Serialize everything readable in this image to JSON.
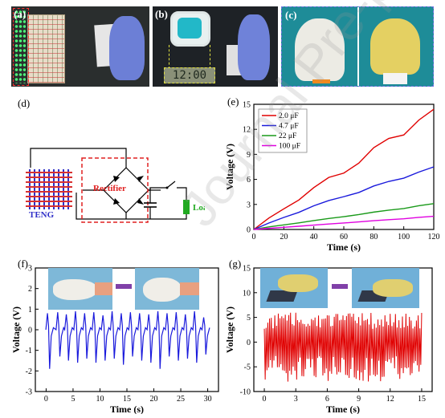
{
  "panels": {
    "a": {
      "label": "(a)"
    },
    "b": {
      "label": "(b)",
      "watch_display": "12:00"
    },
    "c": {
      "label": "(c)"
    },
    "d": {
      "label": "(d)",
      "teng": "TENG",
      "rectifier": "Rectifier",
      "load": "Load"
    },
    "e": {
      "label": "(e)"
    },
    "f": {
      "label": "(f)"
    },
    "g": {
      "label": "(g)"
    }
  },
  "watermark": "Journal Pre-proof",
  "colors": {
    "red": "#e00000",
    "blue": "#1a1adc",
    "green": "#1a9a1a",
    "magenta": "#e000e0",
    "teng_grid_red": "#d83030",
    "teng_grid_blue": "#3030c8",
    "load_green": "#22aa22"
  },
  "chart_data": [
    {
      "id": "e",
      "type": "line",
      "xlabel": "Time (s)",
      "ylabel": "Voltage (V)",
      "xlim": [
        0,
        120
      ],
      "ylim": [
        0,
        15
      ],
      "xticks": [
        0,
        20,
        40,
        60,
        80,
        100,
        120
      ],
      "yticks": [
        0,
        3,
        6,
        9,
        12,
        15
      ],
      "legend_position": "top-left",
      "series": [
        {
          "name": "2.0 μF",
          "color": "#e00000",
          "x": [
            0,
            10,
            20,
            30,
            40,
            50,
            60,
            70,
            80,
            90,
            100,
            110,
            120
          ],
          "y": [
            0,
            1.3,
            2.5,
            3.7,
            4.9,
            6.0,
            7.0,
            8.2,
            9.4,
            10.7,
            11.9,
            13.2,
            14.4
          ]
        },
        {
          "name": "4.7 μF",
          "color": "#1a1adc",
          "x": [
            0,
            10,
            20,
            30,
            40,
            50,
            60,
            70,
            80,
            90,
            100,
            110,
            120
          ],
          "y": [
            0,
            0.75,
            1.45,
            2.1,
            2.8,
            3.4,
            4.0,
            4.5,
            5.1,
            5.7,
            6.3,
            6.9,
            7.5
          ]
        },
        {
          "name": "22 μF",
          "color": "#1a9a1a",
          "x": [
            0,
            10,
            20,
            30,
            40,
            50,
            60,
            70,
            80,
            90,
            100,
            110,
            120
          ],
          "y": [
            0,
            0.3,
            0.55,
            0.8,
            1.05,
            1.3,
            1.55,
            1.8,
            2.05,
            2.3,
            2.55,
            2.85,
            3.1
          ]
        },
        {
          "name": "100 μF",
          "color": "#e000e0",
          "x": [
            0,
            10,
            20,
            30,
            40,
            50,
            60,
            70,
            80,
            90,
            100,
            110,
            120
          ],
          "y": [
            0,
            0.13,
            0.26,
            0.39,
            0.52,
            0.65,
            0.78,
            0.91,
            1.04,
            1.17,
            1.3,
            1.45,
            1.58
          ]
        }
      ]
    },
    {
      "id": "f",
      "type": "line",
      "xlabel": "Time (s)",
      "ylabel": "Voltage (V)",
      "xlim": [
        -2,
        32
      ],
      "ylim": [
        -3,
        3
      ],
      "xticks": [
        0,
        5,
        10,
        15,
        20,
        25,
        30
      ],
      "yticks": [
        -3,
        -2,
        -1,
        0,
        1,
        2,
        3
      ],
      "series": [
        {
          "name": "",
          "color": "#1a1adc",
          "peak_times": [
            0.4,
            2.3,
            3.9,
            5.6,
            7.3,
            9.0,
            10.7,
            12.4,
            14.1,
            15.8,
            17.5,
            19.2,
            20.9,
            22.6,
            24.3,
            26.0,
            27.7,
            29.4
          ],
          "peak_max": [
            0.8,
            0.85,
            0.75,
            0.9,
            0.8,
            0.85,
            0.7,
            0.9,
            0.8,
            0.85,
            0.8,
            0.75,
            0.9,
            0.8,
            0.85,
            0.75,
            0.9,
            0.6
          ],
          "peak_min": [
            -1.9,
            -1.3,
            -1.5,
            -1.6,
            -1.4,
            -1.6,
            -1.5,
            -1.4,
            -1.7,
            -1.3,
            -1.5,
            -1.6,
            -1.9,
            -1.3,
            -1.5,
            -1.4,
            -1.6,
            -1.2
          ]
        }
      ]
    },
    {
      "id": "g",
      "type": "line",
      "xlabel": "Time (s)",
      "ylabel": "Voltage (V)",
      "xlim": [
        -1,
        16
      ],
      "ylim": [
        -10,
        15
      ],
      "xticks": [
        0,
        3,
        6,
        9,
        12,
        15
      ],
      "yticks": [
        -10,
        -5,
        0,
        5,
        10,
        15
      ],
      "series": [
        {
          "name": "",
          "color": "#e00000",
          "amplitude_max": 6,
          "amplitude_min": -8,
          "t_start": 0,
          "t_end": 15,
          "oscillations": 90
        }
      ]
    }
  ]
}
